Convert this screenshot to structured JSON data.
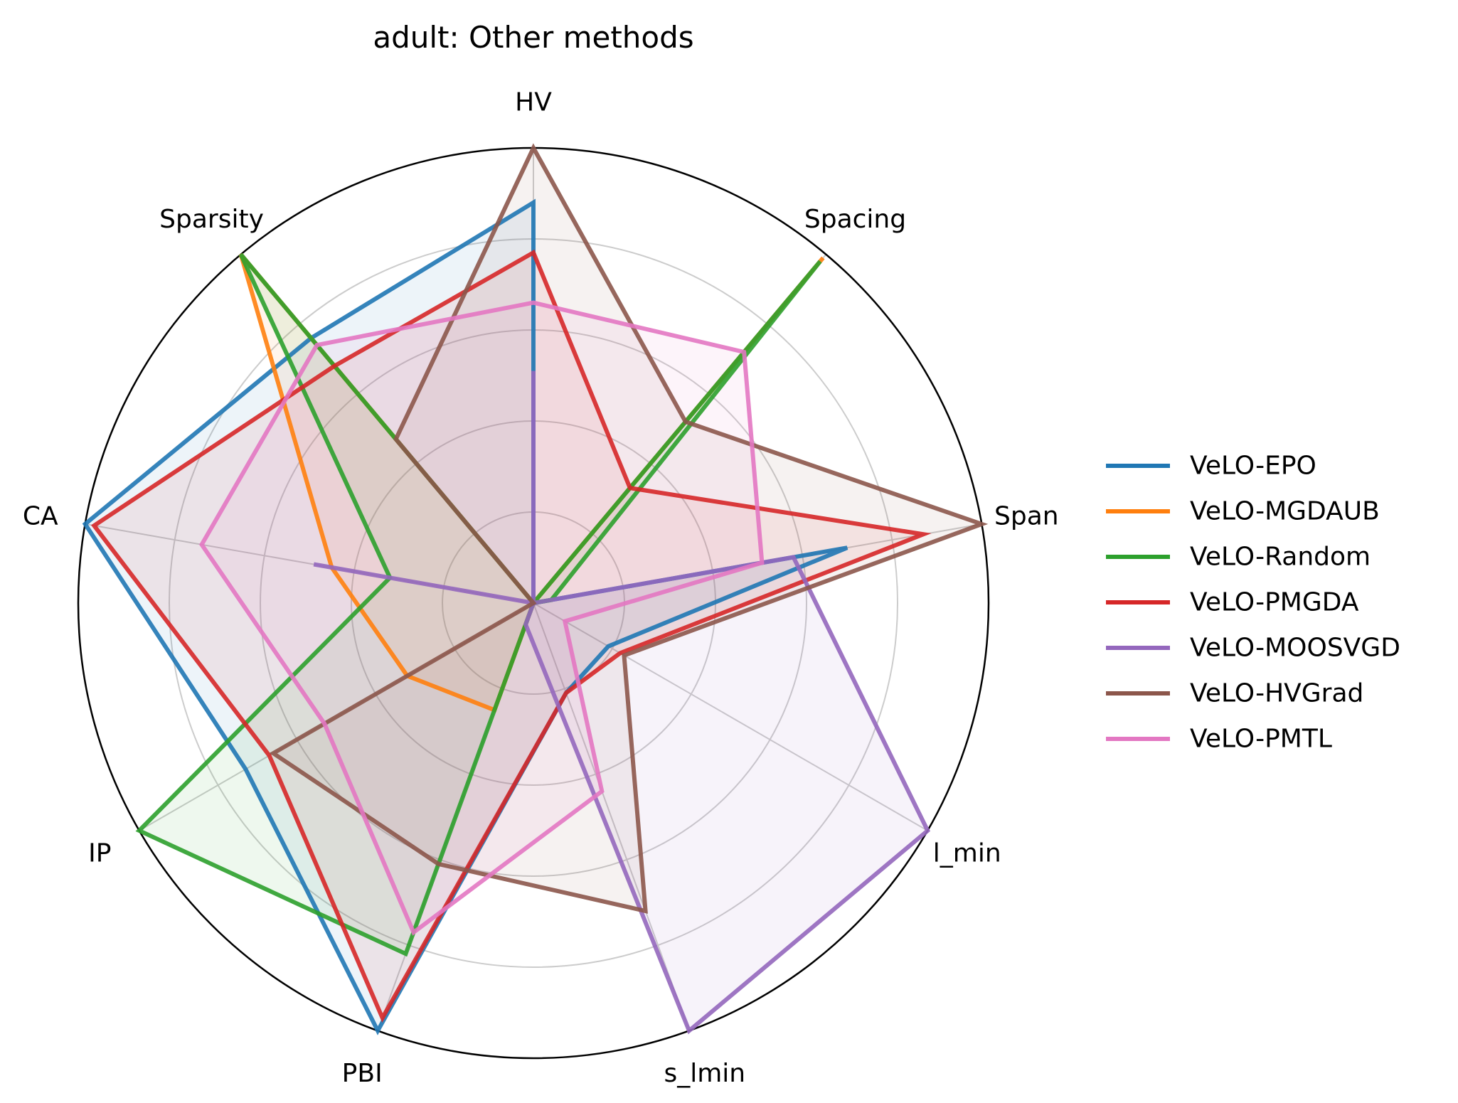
{
  "chart_data": {
    "type": "radar",
    "title": "adult: Other methods",
    "axes": [
      "HV",
      "Spacing",
      "Span",
      "l_min",
      "s_lmin",
      "PBI",
      "IP",
      "CA",
      "Sparsity"
    ],
    "rlim": [
      0,
      1
    ],
    "grid": true,
    "legend_position": "right",
    "series": [
      {
        "name": "VeLO-EPO",
        "color": "#1f77b4",
        "values": [
          0.88,
          0.0,
          0.7,
          0.19,
          0.21,
          1.0,
          0.73,
          1.0,
          0.76
        ]
      },
      {
        "name": "VeLO-MGDAUB",
        "color": "#ff7f0e",
        "values": [
          0.0,
          0.99,
          0.0,
          0.0,
          0.0,
          0.25,
          0.32,
          0.45,
          1.0
        ]
      },
      {
        "name": "VeLO-Random",
        "color": "#2ca02c",
        "values": [
          0.0,
          0.98,
          0.04,
          0.0,
          0.0,
          0.82,
          1.0,
          0.32,
          1.0
        ]
      },
      {
        "name": "VeLO-PMGDA",
        "color": "#d62728",
        "values": [
          0.77,
          0.33,
          0.87,
          0.22,
          0.21,
          0.97,
          0.67,
          0.98,
          0.68
        ]
      },
      {
        "name": "VeLO-MOOSVGD",
        "color": "#9467bd",
        "values": [
          0.51,
          0.0,
          0.58,
          1.0,
          1.0,
          0.05,
          0.0,
          0.49,
          0.0
        ]
      },
      {
        "name": "VeLO-HVGrad",
        "color": "#8c564b",
        "values": [
          1.0,
          0.52,
          1.0,
          0.23,
          0.72,
          0.61,
          0.66,
          0.0,
          0.47
        ]
      },
      {
        "name": "VeLO-PMTL",
        "color": "#e377c2",
        "values": [
          0.66,
          0.72,
          0.51,
          0.08,
          0.44,
          0.77,
          0.53,
          0.74,
          0.74
        ]
      }
    ]
  }
}
